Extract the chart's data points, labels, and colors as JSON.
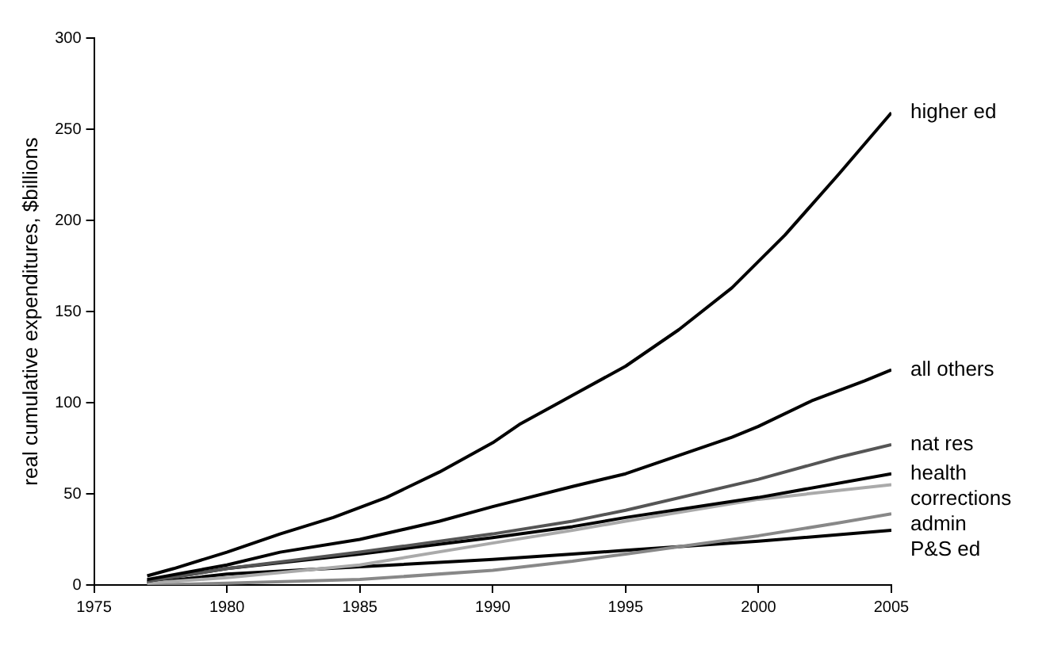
{
  "chart_data": {
    "type": "line",
    "ylabel": "real cumulative expenditures, $billions",
    "xlim": [
      1975,
      2005
    ],
    "xticks": [
      1975,
      1980,
      1985,
      1990,
      1995,
      2000,
      2005
    ],
    "ylim": [
      0,
      300
    ],
    "yticks": [
      0,
      50,
      100,
      150,
      200,
      250,
      300
    ],
    "grid": false,
    "legend": false,
    "marker": "none",
    "line_style": "solid",
    "series": [
      {
        "name": "higher ed",
        "color": "#000000",
        "x": [
          1977,
          1978,
          1980,
          1982,
          1984,
          1986,
          1988,
          1990,
          1991,
          1993,
          1995,
          1997,
          1999,
          2001,
          2003,
          2005
        ],
        "values": [
          5,
          9,
          18,
          28,
          37,
          48,
          62,
          78,
          88,
          104,
          120,
          140,
          163,
          192,
          225,
          259
        ]
      },
      {
        "name": "all others",
        "color": "#000000",
        "x": [
          1977,
          1980,
          1982,
          1985,
          1988,
          1990,
          1993,
          1995,
          1997,
          1999,
          2000,
          2002,
          2004,
          2005
        ],
        "values": [
          3,
          11,
          18,
          25,
          35,
          43,
          54,
          61,
          71,
          81,
          87,
          101,
          112,
          118
        ]
      },
      {
        "name": "nat res",
        "color": "#555555",
        "x": [
          1977,
          1980,
          1985,
          1990,
          1993,
          1995,
          2000,
          2003,
          2005
        ],
        "values": [
          2,
          9,
          18,
          28,
          35,
          41,
          58,
          70,
          77
        ]
      },
      {
        "name": "health",
        "color": "#000000",
        "x": [
          1977,
          1980,
          1985,
          1990,
          1993,
          1995,
          2000,
          2005
        ],
        "values": [
          2,
          9,
          17,
          26,
          32,
          37,
          48,
          61
        ]
      },
      {
        "name": "corrections",
        "color": "#aaaaaa",
        "x": [
          1977,
          1980,
          1985,
          1990,
          1993,
          1995,
          2000,
          2005
        ],
        "values": [
          1,
          4,
          11,
          23,
          30,
          35,
          47,
          55
        ]
      },
      {
        "name": "admin",
        "color": "#888888",
        "x": [
          1977,
          1980,
          1985,
          1990,
          1993,
          1995,
          1997,
          2000,
          2003,
          2005
        ],
        "values": [
          0,
          1,
          3,
          8,
          13,
          17,
          21,
          27,
          34,
          39
        ]
      },
      {
        "name": "P&S ed",
        "color": "#000000",
        "x": [
          1977,
          1980,
          1985,
          1990,
          1993,
          1995,
          2000,
          2005
        ],
        "values": [
          1,
          6,
          10,
          14,
          17,
          19,
          24,
          30
        ]
      }
    ]
  }
}
